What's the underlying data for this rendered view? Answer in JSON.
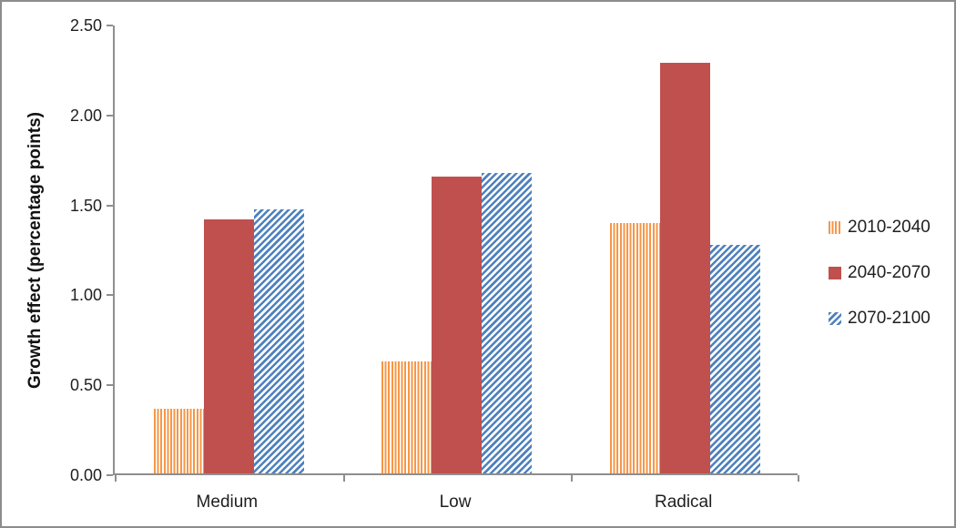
{
  "chart_data": {
    "type": "bar",
    "title": "",
    "categories": [
      "Medium",
      "Low",
      "Radical"
    ],
    "series": [
      {
        "name": "2010-2040",
        "values": [
          0.36,
          0.62,
          1.39
        ],
        "color": "#F79646",
        "pattern": "vertical-stripes"
      },
      {
        "name": "2040-2070",
        "values": [
          1.41,
          1.65,
          2.28
        ],
        "color": "#C0504D",
        "pattern": "solid"
      },
      {
        "name": "2070-2100",
        "values": [
          1.47,
          1.67,
          1.27
        ],
        "color": "#4F81BD",
        "pattern": "diagonal-stripes"
      }
    ],
    "xlabel": "",
    "ylabel": "Growth effect (percentage points)",
    "ylim": [
      0,
      2.5
    ],
    "ytick_values": [
      0,
      0.5,
      1.0,
      1.5,
      2.0,
      2.5
    ],
    "yticks": [
      "0.00",
      "0.50",
      "1.00",
      "1.50",
      "2.00",
      "2.50"
    ],
    "grid": false,
    "legend_position": "right",
    "colors": {
      "axis": "#8E8E8E",
      "text": "#1F1F1F",
      "frame_border": "#8C8C8C",
      "background": "#FFFFFF"
    }
  }
}
